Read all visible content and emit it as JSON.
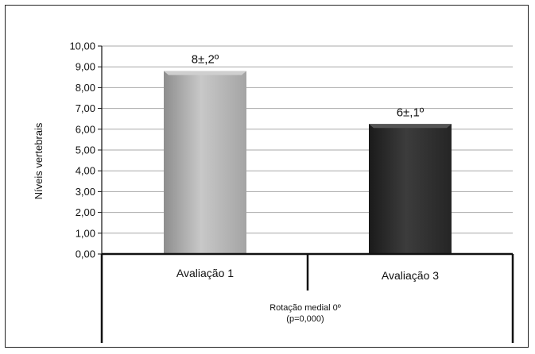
{
  "chart_data": {
    "type": "bar",
    "categories": [
      "Avaliação 1",
      "Avaliação 3"
    ],
    "values": [
      8.8,
      6.25
    ],
    "data_labels": [
      "8±,2º",
      "6±,1º"
    ],
    "ylabel": "Níveis vertebrais",
    "group_label_line1": "Rotação medial 0º",
    "group_label_line2": "(p=0,000)",
    "ylim": [
      0,
      10
    ],
    "yticks": [
      "0,00",
      "1,00",
      "2,00",
      "3,00",
      "4,00",
      "5,00",
      "6,00",
      "7,00",
      "8,00",
      "9,00",
      "10,00"
    ],
    "colors": {
      "bar1": "#b4b4b4",
      "bar2": "#2e2e2e",
      "grid": "#a8a8a8",
      "axis": "#111111"
    },
    "grid": true
  }
}
